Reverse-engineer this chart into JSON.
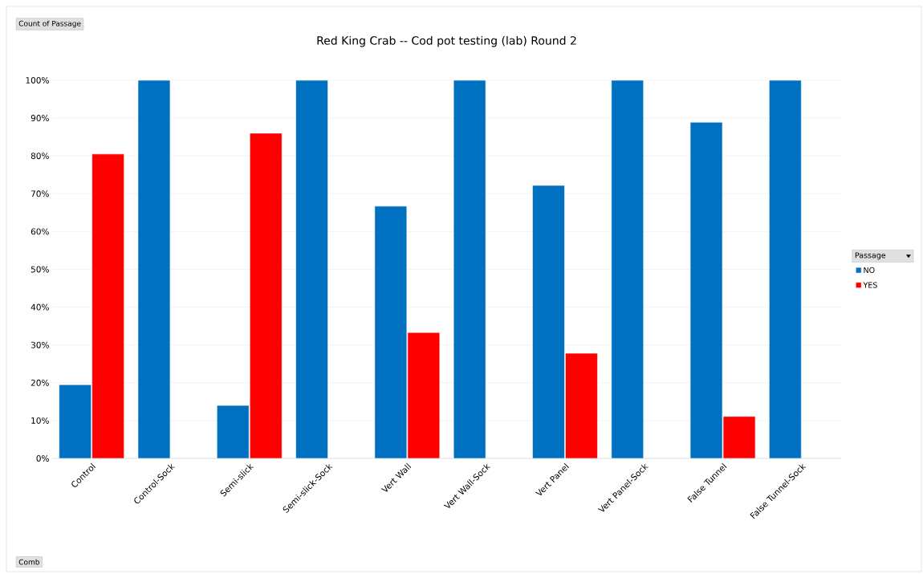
{
  "chart_data": {
    "type": "bar",
    "title": "Red King Crab -- Cod pot testing (lab) Round 2",
    "categories": [
      "Control",
      "Control-Sock",
      "Semi-slick",
      "Semi-slick-Sock",
      "Vert Wall",
      "Vert Wall-Sock",
      "Vert Panel",
      "Vert Panel-Sock",
      "False Tunnel",
      "False Tunnel-Sock"
    ],
    "series": [
      {
        "name": "NO",
        "color": "#0070c0",
        "values": [
          19.5,
          100,
          14,
          100,
          66.7,
          100,
          72.2,
          100,
          88.9,
          100
        ]
      },
      {
        "name": "YES",
        "color": "#ff0000",
        "values": [
          80.5,
          null,
          86,
          null,
          33.3,
          null,
          27.8,
          null,
          11.1,
          null
        ]
      }
    ],
    "ylim": [
      0,
      100
    ],
    "yticks": [
      {
        "value": 0,
        "label": "0%"
      },
      {
        "value": 10,
        "label": "10%"
      },
      {
        "value": 20,
        "label": "20%"
      },
      {
        "value": 30,
        "label": "30%"
      },
      {
        "value": 40,
        "label": "40%"
      },
      {
        "value": 50,
        "label": "50%"
      },
      {
        "value": 60,
        "label": "60%"
      },
      {
        "value": 70,
        "label": "70%"
      },
      {
        "value": 80,
        "label": "80%"
      },
      {
        "value": 90,
        "label": "90%"
      },
      {
        "value": 100,
        "label": "100%"
      }
    ],
    "grid": "y",
    "legend": "right",
    "legend_title": "Passage",
    "annotations": [
      "Count of Passage",
      "Comb"
    ]
  }
}
